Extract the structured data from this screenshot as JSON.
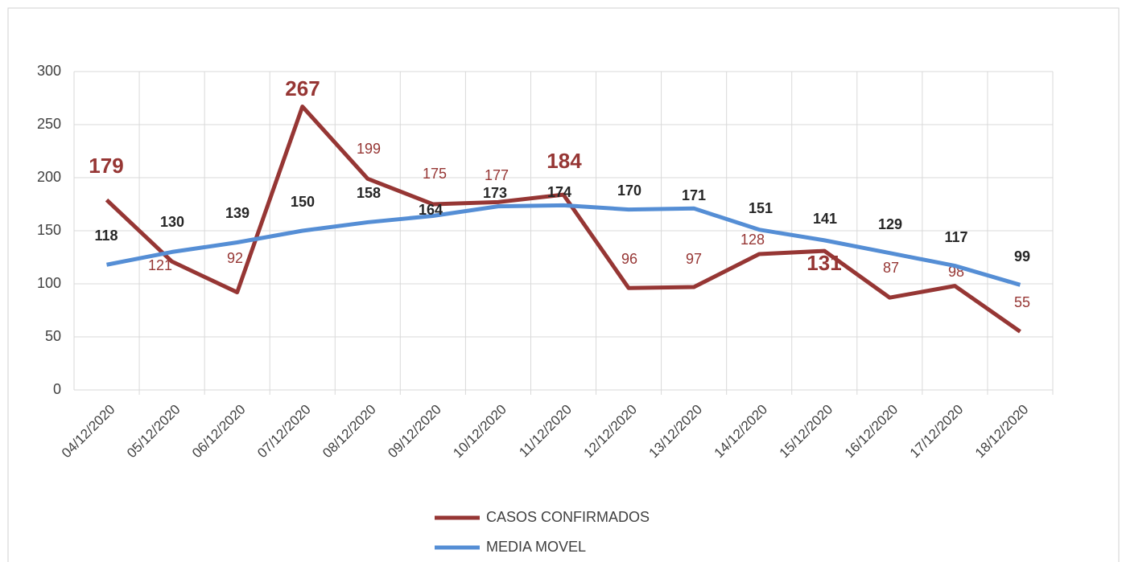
{
  "chart_data": {
    "type": "line",
    "categories": [
      "04/12/2020",
      "05/12/2020",
      "06/12/2020",
      "07/12/2020",
      "08/12/2020",
      "09/12/2020",
      "10/12/2020",
      "11/12/2020",
      "12/12/2020",
      "13/12/2020",
      "14/12/2020",
      "15/12/2020",
      "16/12/2020",
      "17/12/2020",
      "18/12/2020"
    ],
    "series": [
      {
        "name": "CASOS CONFIRMADOS",
        "color": "#963634",
        "values": [
          179,
          121,
          92,
          267,
          199,
          175,
          177,
          184,
          96,
          97,
          128,
          131,
          87,
          98,
          55
        ]
      },
      {
        "name": "MEDIA MOVEL",
        "color": "#558ed5",
        "values": [
          118,
          130,
          139,
          150,
          158,
          164,
          173,
          174,
          170,
          171,
          151,
          141,
          129,
          117,
          99
        ]
      }
    ],
    "ylim": [
      0,
      300
    ],
    "yticks": [
      0,
      50,
      100,
      150,
      200,
      250,
      300
    ],
    "grid": true
  }
}
